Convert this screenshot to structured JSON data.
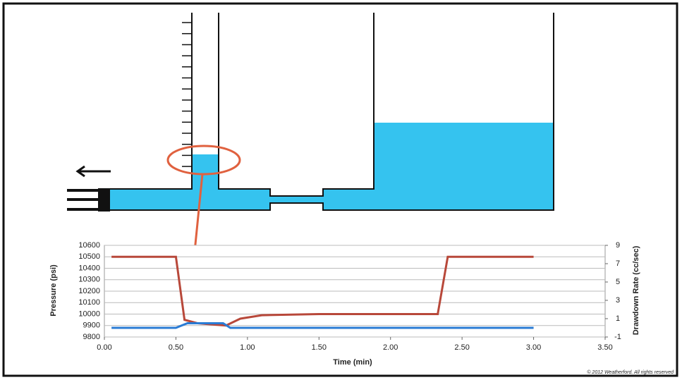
{
  "chart_data": {
    "type": "line",
    "xlabel": "Time (min)",
    "ylabel": "Pressure (psi)",
    "y2label": "Drawdown Rate (cc/sec)",
    "xlim": [
      0,
      3.5
    ],
    "xticks": [
      {
        "value": 0,
        "label": "0.00"
      },
      {
        "value": 0.5,
        "label": "0.50"
      },
      {
        "value": 1,
        "label": "1.00"
      },
      {
        "value": 1.5,
        "label": "1.50"
      },
      {
        "value": 2,
        "label": "2.00"
      },
      {
        "value": 2.5,
        "label": "2.50"
      },
      {
        "value": 3,
        "label": "3.00"
      },
      {
        "value": 3.5,
        "label": "3.50"
      }
    ],
    "ylim": [
      9800,
      10600
    ],
    "yticks": [
      9800,
      9900,
      10000,
      10100,
      10200,
      10300,
      10400,
      10500,
      10600
    ],
    "y2lim": [
      -1,
      9
    ],
    "y2ticks": [
      -1,
      1,
      3,
      5,
      7,
      9
    ],
    "grid": true,
    "series": [
      {
        "color": "#b8483a",
        "x": [
          0.05,
          0.5,
          0.56,
          0.65,
          0.85,
          0.95,
          1.1,
          1.5,
          2.33,
          2.4,
          3.0
        ],
        "values": [
          10500,
          10500,
          9950,
          9920,
          9900,
          9960,
          9990,
          10000,
          10000,
          10500,
          10500
        ]
      },
      {
        "color": "#2a7bd4",
        "axis": "y2",
        "x": [
          0.05,
          0.5,
          0.58,
          0.83,
          0.88,
          3.0
        ],
        "values": [
          0,
          0,
          0.5,
          0.5,
          0,
          0
        ]
      }
    ]
  },
  "copyright": "© 2012 Weatherford. All rights reserved"
}
